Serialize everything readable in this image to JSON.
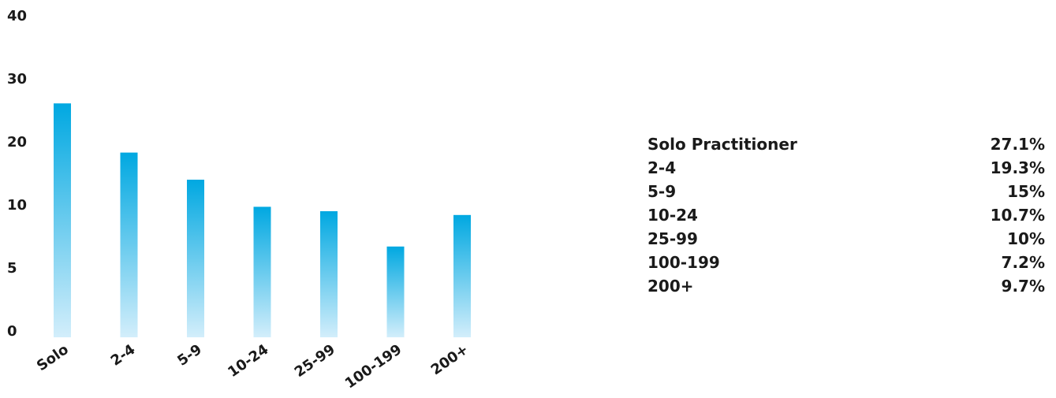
{
  "chart_data": {
    "type": "bar",
    "y_ticks": [
      {
        "label": "40",
        "value": 40
      },
      {
        "label": "30",
        "value": 30
      },
      {
        "label": "20",
        "value": 20
      },
      {
        "label": "10",
        "value": 10
      },
      {
        "label": "5",
        "value": 5
      },
      {
        "label": "0",
        "value": 0
      }
    ],
    "categories": [
      "Solo",
      "2-4",
      "5-9",
      "10-24",
      "25-99",
      "100-199",
      "200+"
    ],
    "values": [
      27.1,
      19.3,
      15,
      10.7,
      10,
      7.2,
      9.7
    ],
    "bar_color_top": "#00a8e1",
    "bar_color_bottom": "#d3eefb",
    "grid": false
  },
  "legend_table": [
    {
      "label": "Solo Practitioner",
      "value": "27.1%"
    },
    {
      "label": "2-4",
      "value": "19.3%"
    },
    {
      "label": "5-9",
      "value": "15%"
    },
    {
      "label": "10-24",
      "value": "10.7%"
    },
    {
      "label": "25-99",
      "value": "10%"
    },
    {
      "label": "100-199",
      "value": "7.2%"
    },
    {
      "label": "200+",
      "value": "9.7%"
    }
  ]
}
